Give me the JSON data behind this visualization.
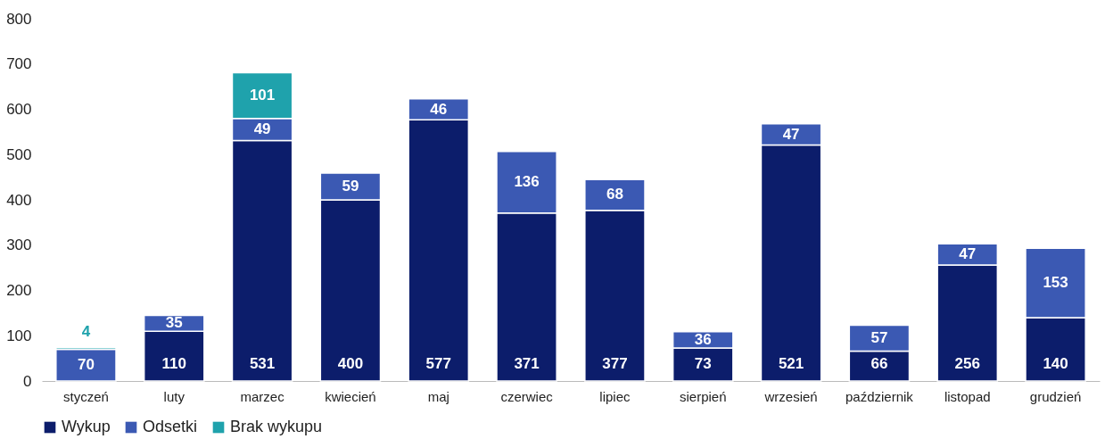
{
  "chart_data": {
    "type": "bar",
    "stacked": true,
    "categories": [
      "styczeń",
      "luty",
      "marzec",
      "kwiecień",
      "maj",
      "czerwiec",
      "lipiec",
      "sierpień",
      "wrzesień",
      "październik",
      "listopad",
      "grudzień"
    ],
    "series": [
      {
        "name": "Wykup",
        "color": "#0c1d6b",
        "values": [
          null,
          110,
          531,
          400,
          577,
          371,
          377,
          73,
          521,
          66,
          256,
          140
        ]
      },
      {
        "name": "Odsetki",
        "color": "#3b59b3",
        "values": [
          70,
          35,
          49,
          59,
          46,
          136,
          68,
          36,
          47,
          57,
          47,
          153
        ]
      },
      {
        "name": "Brak wykupu",
        "color": "#1fa2ac",
        "values": [
          4,
          null,
          101,
          null,
          null,
          null,
          null,
          null,
          null,
          null,
          null,
          null
        ]
      }
    ],
    "ylim": [
      0,
      800
    ],
    "yticks": [
      0,
      100,
      200,
      300,
      400,
      500,
      600,
      700,
      800
    ],
    "grid": false,
    "legend": "bottom",
    "data_labels": true
  }
}
